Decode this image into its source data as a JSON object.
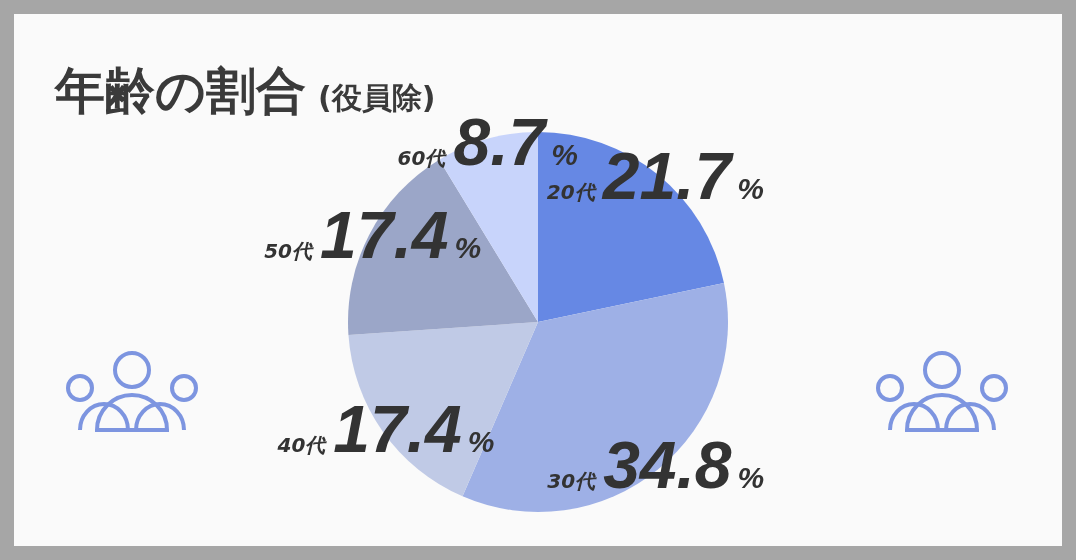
{
  "chart_data": {
    "type": "pie",
    "title": "年齢の割合",
    "subtitle": "(役員除)",
    "categories": [
      "20代",
      "30代",
      "40代",
      "50代",
      "60代"
    ],
    "values": [
      21.7,
      34.8,
      17.4,
      17.4,
      8.7
    ],
    "value_labels": [
      "21.7%",
      "34.8%",
      "17.4%",
      "17.4%",
      "8.7%"
    ],
    "colors": [
      "#6688e4",
      "#9eb0e6",
      "#c0cae6",
      "#9ba6c8",
      "#c8d4fb"
    ]
  }
}
